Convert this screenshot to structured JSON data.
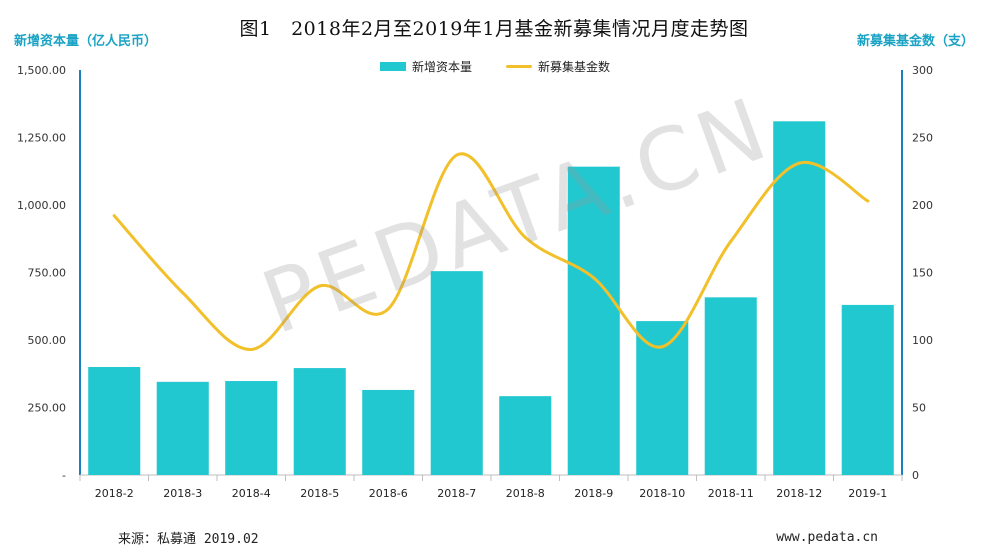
{
  "chart_data": {
    "type": "bar+line",
    "title": "图1　2018年2月至2019年1月基金新募集情况月度走势图",
    "left_axis_label": "新增资本量（亿人民币）",
    "right_axis_label": "新募集基金数（支）",
    "categories": [
      "2018-2",
      "2018-3",
      "2018-4",
      "2018-5",
      "2018-6",
      "2018-7",
      "2018-8",
      "2018-9",
      "2018-10",
      "2018-11",
      "2018-12",
      "2019-1"
    ],
    "series": [
      {
        "name": "新增资本量",
        "type": "bar",
        "axis": "left",
        "color": "#22c8d0",
        "values": [
          400,
          345,
          348,
          396,
          315,
          755,
          292,
          1142,
          570,
          658,
          1310,
          630
        ]
      },
      {
        "name": "新募集基金数",
        "type": "line",
        "axis": "right",
        "color": "#f2c02a",
        "values": [
          192,
          135,
          93,
          140,
          123,
          237,
          176,
          146,
          95,
          173,
          231,
          203
        ]
      }
    ],
    "left_ylim": [
      0,
      1500
    ],
    "left_ticks": [
      "-",
      "250.00",
      "500.00",
      "750.00",
      "1,000.00",
      "1,250.00",
      "1,500.00"
    ],
    "right_ylim": [
      0,
      300
    ],
    "right_ticks": [
      "0",
      "50",
      "100",
      "150",
      "200",
      "250",
      "300"
    ],
    "legend_position": "top-center",
    "grid": false
  },
  "footer": {
    "source": "来源：私募通 2019.02",
    "website": "www.pedata.cn"
  },
  "watermark": "PEDATA.CN"
}
